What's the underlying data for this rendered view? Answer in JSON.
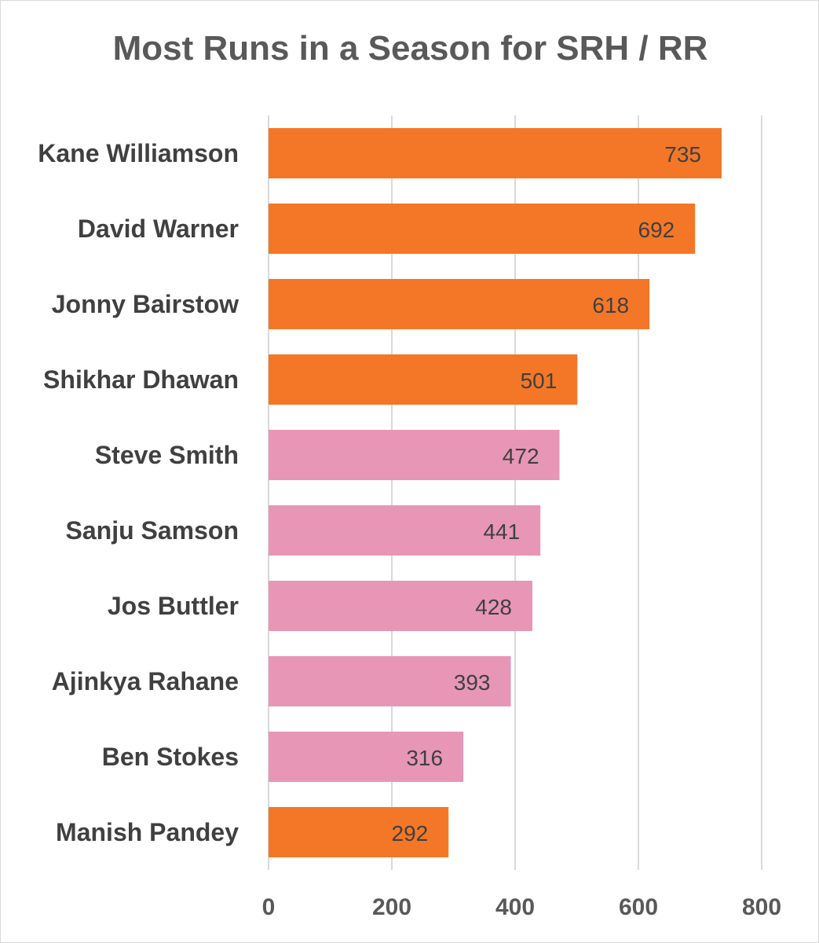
{
  "chart_data": {
    "type": "bar",
    "orientation": "horizontal",
    "title": "Most Runs in a Season for SRH / RR",
    "xlabel": "",
    "ylabel": "",
    "xlim": [
      0,
      800
    ],
    "ticks": [
      "0",
      "200",
      "400",
      "600",
      "800"
    ],
    "tick_values": [
      0,
      200,
      400,
      600,
      800
    ],
    "grid": true,
    "legend": "none",
    "categories": [
      "Kane Williamson",
      "David Warner",
      "Jonny Bairstow",
      "Shikhar Dhawan",
      "Steve Smith",
      "Sanju Samson",
      "Jos Buttler",
      "Ajinkya Rahane",
      "Ben Stokes",
      "Manish Pandey"
    ],
    "values": [
      735,
      692,
      618,
      501,
      472,
      441,
      428,
      393,
      316,
      292
    ],
    "bar_colors": [
      "#f47727",
      "#f47727",
      "#f47727",
      "#f47727",
      "#e796b6",
      "#e796b6",
      "#e796b6",
      "#e796b6",
      "#e796b6",
      "#f47727"
    ],
    "data_labels": [
      "735",
      "692",
      "618",
      "501",
      "472",
      "441",
      "428",
      "393",
      "316",
      "292"
    ]
  }
}
